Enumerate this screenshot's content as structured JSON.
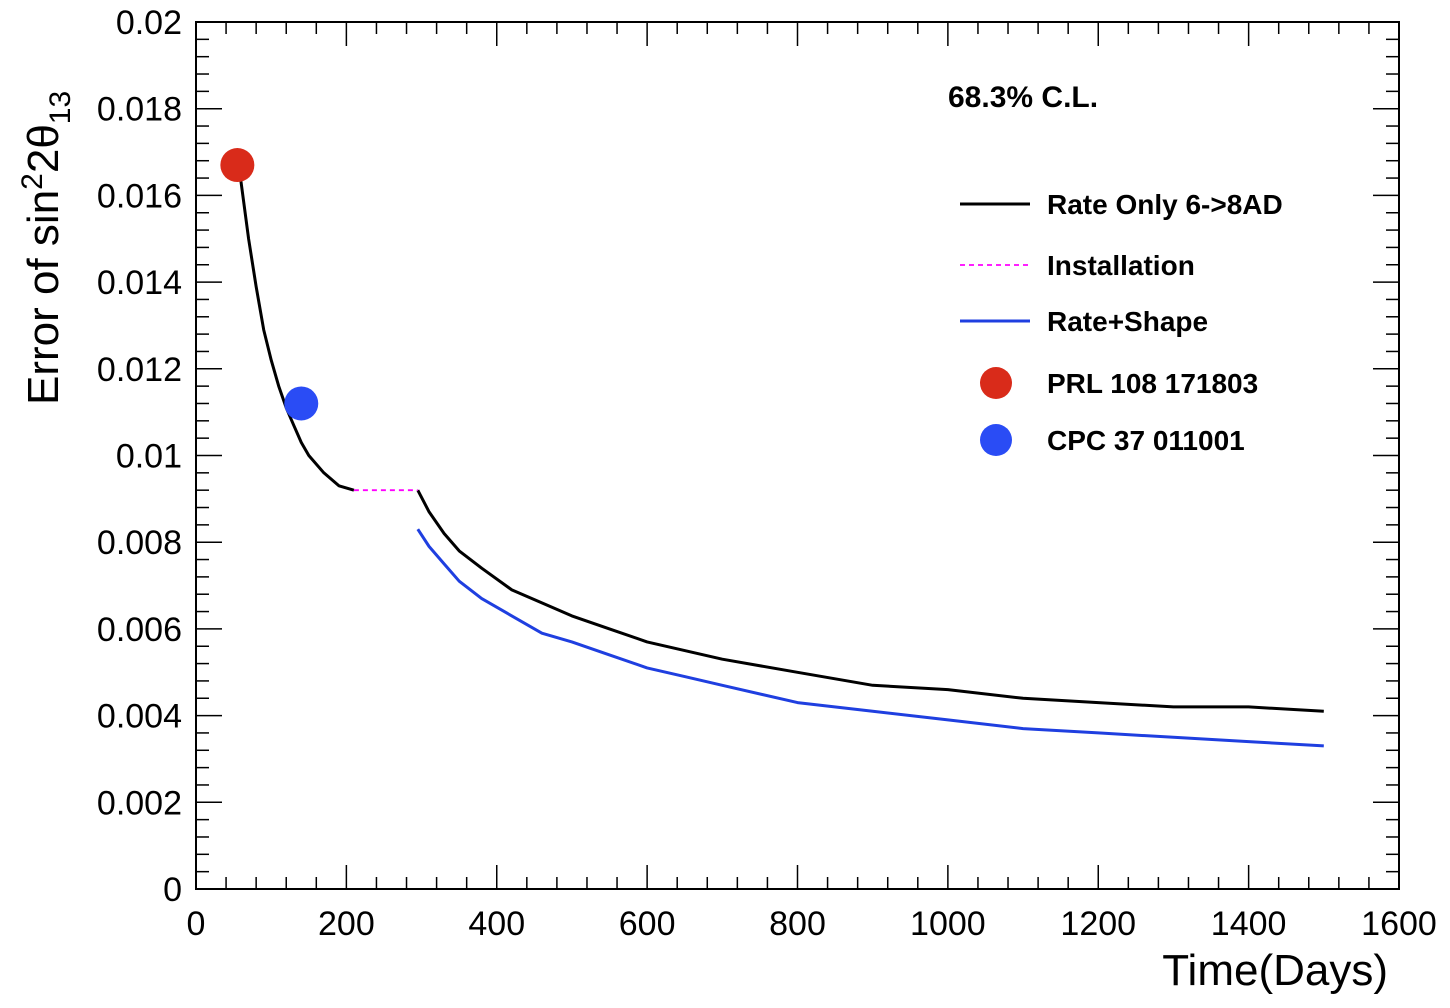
{
  "chart_data": {
    "type": "line",
    "title": "",
    "xlabel": "Time(Days)",
    "ylabel_parts": {
      "base": "Error of sin",
      "sup": "2",
      "mid": "2θ",
      "sub": "13"
    },
    "xlim": [
      0,
      1600
    ],
    "ylim": [
      0,
      0.02
    ],
    "x_ticks": [
      "0",
      "200",
      "400",
      "600",
      "800",
      "1000",
      "1200",
      "1400",
      "1600"
    ],
    "y_ticks": [
      "0",
      "0.002",
      "0.004",
      "0.006",
      "0.008",
      "0.01",
      "0.012",
      "0.014",
      "0.016",
      "0.018",
      "0.02"
    ],
    "annotation": "68.3% C.L.",
    "series": [
      {
        "name": "Rate Only 6->8AD",
        "color": "#000000",
        "style": "solid",
        "segments": [
          {
            "x": [
              55,
              60,
              70,
              80,
              90,
              100,
              110,
              120,
              130,
              140,
              150,
              170,
              190,
              210
            ],
            "y": [
              0.0168,
              0.0163,
              0.015,
              0.0139,
              0.0129,
              0.0122,
              0.0116,
              0.0111,
              0.0107,
              0.0103,
              0.01,
              0.0096,
              0.0093,
              0.0092
            ]
          },
          {
            "x": [
              295,
              310,
              330,
              350,
              380,
              420,
              460,
              500,
              550,
              600,
              650,
              700,
              800,
              900,
              1000,
              1100,
              1200,
              1300,
              1400,
              1500
            ],
            "y": [
              0.0092,
              0.0087,
              0.0082,
              0.0078,
              0.0074,
              0.0069,
              0.0066,
              0.0063,
              0.006,
              0.0057,
              0.0055,
              0.0053,
              0.005,
              0.0047,
              0.0046,
              0.0044,
              0.0043,
              0.0042,
              0.0042,
              0.0041
            ]
          }
        ]
      },
      {
        "name": "Installation",
        "color": "#ff00ff",
        "style": "dashed",
        "segments": [
          {
            "x": [
              210,
              295
            ],
            "y": [
              0.0092,
              0.0092
            ]
          }
        ]
      },
      {
        "name": "Rate+Shape",
        "color": "#1f3fe0",
        "style": "solid",
        "segments": [
          {
            "x": [
              295,
              310,
              330,
              350,
              380,
              420,
              460,
              500,
              550,
              600,
              650,
              700,
              800,
              900,
              1000,
              1100,
              1200,
              1300,
              1400,
              1500
            ],
            "y": [
              0.0083,
              0.0079,
              0.0075,
              0.0071,
              0.0067,
              0.0063,
              0.0059,
              0.0057,
              0.0054,
              0.0051,
              0.0049,
              0.0047,
              0.0043,
              0.0041,
              0.0039,
              0.0037,
              0.0036,
              0.0035,
              0.0034,
              0.0033
            ]
          }
        ]
      }
    ],
    "points": [
      {
        "name": "PRL 108 171803",
        "x": 55,
        "y": 0.0167,
        "color": "#d92b1a"
      },
      {
        "name": "CPC 37 011001",
        "x": 140,
        "y": 0.0112,
        "color": "#2a4cf5"
      }
    ],
    "legend": [
      {
        "label": "Rate Only 6->8AD",
        "kind": "line",
        "color": "#000000",
        "style": "solid"
      },
      {
        "label": "Installation",
        "kind": "line",
        "color": "#ff00ff",
        "style": "dashed"
      },
      {
        "label": "Rate+Shape",
        "kind": "line",
        "color": "#1f3fe0",
        "style": "solid"
      },
      {
        "label": "PRL 108 171803",
        "kind": "marker",
        "color": "#d92b1a"
      },
      {
        "label": "CPC 37 011001",
        "kind": "marker",
        "color": "#2a4cf5"
      }
    ],
    "legend_position": "top-right"
  }
}
